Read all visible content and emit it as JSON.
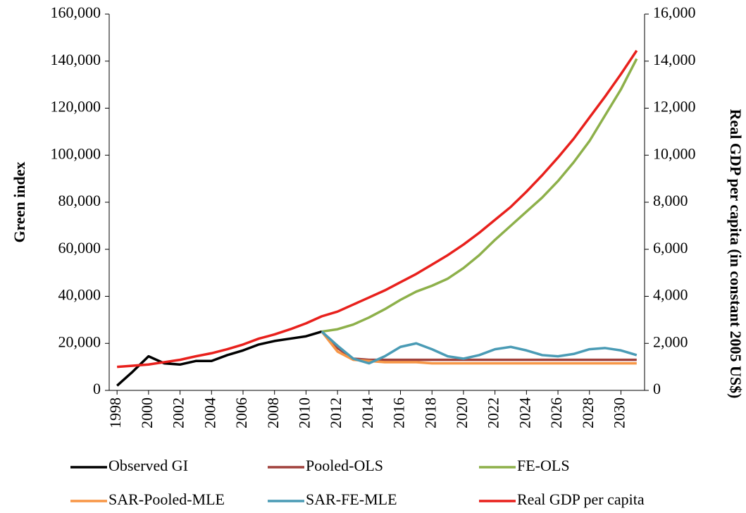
{
  "chart_data": {
    "type": "line",
    "y_label": "Green index",
    "y2_label": "Real GDP per capita (in constant 2005 US$)",
    "xlim": [
      1997.5,
      2031.5
    ],
    "xticks": [
      1998,
      2000,
      2002,
      2004,
      2006,
      2008,
      2010,
      2012,
      2014,
      2016,
      2018,
      2020,
      2022,
      2024,
      2026,
      2028,
      2030
    ],
    "ylim": [
      0,
      160000
    ],
    "yticks": [
      0,
      {
        "value": 20000,
        "label": "20,000"
      },
      {
        "value": 40000,
        "label": "40,000"
      },
      {
        "value": 60000,
        "label": "60,000"
      },
      {
        "value": 80000,
        "label": "80,000"
      },
      {
        "value": 100000,
        "label": "100,000"
      },
      {
        "value": 120000,
        "label": "120,000"
      },
      {
        "value": 140000,
        "label": "140,000"
      },
      {
        "value": 160000,
        "label": "160,000"
      }
    ],
    "y2lim": [
      0,
      16000
    ],
    "y2ticks": [
      0,
      {
        "value": 2000,
        "label": "2,000"
      },
      {
        "value": 4000,
        "label": "4,000"
      },
      {
        "value": 6000,
        "label": "6,000"
      },
      {
        "value": 8000,
        "label": "8,000"
      },
      {
        "value": 10000,
        "label": "10,000"
      },
      {
        "value": 12000,
        "label": "12,000"
      },
      {
        "value": 14000,
        "label": "14,000"
      },
      {
        "value": 16000,
        "label": "16,000"
      }
    ],
    "series": [
      {
        "name": "Observed GI",
        "color": "#000000",
        "x": [
          1998,
          1999,
          2000,
          2001,
          2002,
          2003,
          2004,
          2005,
          2006,
          2007,
          2008,
          2009,
          2010,
          2011
        ],
        "values": [
          2000,
          8000,
          14500,
          11500,
          11000,
          12500,
          12500,
          15000,
          17000,
          19500,
          21000,
          22000,
          23000,
          25000
        ]
      },
      {
        "name": "Pooled-OLS",
        "color": "#a0413c",
        "x": [
          2011,
          2012,
          2013,
          2014,
          2015,
          2016,
          2017,
          2018,
          2019,
          2020,
          2021,
          2022,
          2023,
          2024,
          2025,
          2026,
          2027,
          2028,
          2029,
          2030,
          2031
        ],
        "values": [
          25000,
          18000,
          13500,
          13000,
          13000,
          13000,
          13000,
          13000,
          13000,
          13000,
          13000,
          13000,
          13000,
          13000,
          13000,
          13000,
          13000,
          13000,
          13000,
          13000,
          13000
        ]
      },
      {
        "name": "FE-OLS",
        "color": "#8db04a",
        "x": [
          2011,
          2012,
          2013,
          2014,
          2015,
          2016,
          2017,
          2018,
          2019,
          2020,
          2021,
          2022,
          2023,
          2024,
          2025,
          2026,
          2027,
          2028,
          2029,
          2030,
          2031
        ],
        "values": [
          25000,
          26000,
          28000,
          31000,
          34500,
          38500,
          42000,
          44500,
          47500,
          52000,
          57500,
          64000,
          70000,
          76000,
          82000,
          89000,
          97000,
          106000,
          117000,
          128000,
          141000
        ]
      },
      {
        "name": "SAR-Pooled-MLE",
        "color": "#f79646",
        "x": [
          2011,
          2012,
          2013,
          2014,
          2015,
          2016,
          2017,
          2018,
          2019,
          2020,
          2021,
          2022,
          2023,
          2024,
          2025,
          2026,
          2027,
          2028,
          2029,
          2030,
          2031
        ],
        "values": [
          25000,
          16500,
          13000,
          12500,
          12000,
          12000,
          12000,
          11500,
          11500,
          11500,
          11500,
          11500,
          11500,
          11500,
          11500,
          11500,
          11500,
          11500,
          11500,
          11500,
          11500
        ]
      },
      {
        "name": "SAR-FE-MLE",
        "color": "#4a9bb5",
        "x": [
          2011,
          2012,
          2013,
          2014,
          2015,
          2016,
          2017,
          2018,
          2019,
          2020,
          2021,
          2022,
          2023,
          2024,
          2025,
          2026,
          2027,
          2028,
          2029,
          2030,
          2031
        ],
        "values": [
          25000,
          19000,
          13500,
          11500,
          14500,
          18500,
          20000,
          17500,
          14500,
          13500,
          15000,
          17500,
          18500,
          17000,
          15000,
          14500,
          15500,
          17500,
          18000,
          17000,
          15000
        ]
      },
      {
        "name": "Real GDP per capita",
        "color": "#e8201c",
        "axis": "y2",
        "x": [
          1998,
          1999,
          2000,
          2001,
          2002,
          2003,
          2004,
          2005,
          2006,
          2007,
          2008,
          2009,
          2010,
          2011,
          2012,
          2013,
          2014,
          2015,
          2016,
          2017,
          2018,
          2019,
          2020,
          2021,
          2022,
          2023,
          2024,
          2025,
          2026,
          2027,
          2028,
          2029,
          2030,
          2031
        ],
        "values": [
          1000,
          1050,
          1100,
          1200,
          1300,
          1450,
          1580,
          1750,
          1950,
          2200,
          2380,
          2600,
          2850,
          3150,
          3350,
          3650,
          3950,
          4250,
          4600,
          4950,
          5350,
          5750,
          6200,
          6700,
          7250,
          7800,
          8450,
          9150,
          9900,
          10700,
          11600,
          12500,
          13450,
          14450
        ]
      }
    ]
  }
}
